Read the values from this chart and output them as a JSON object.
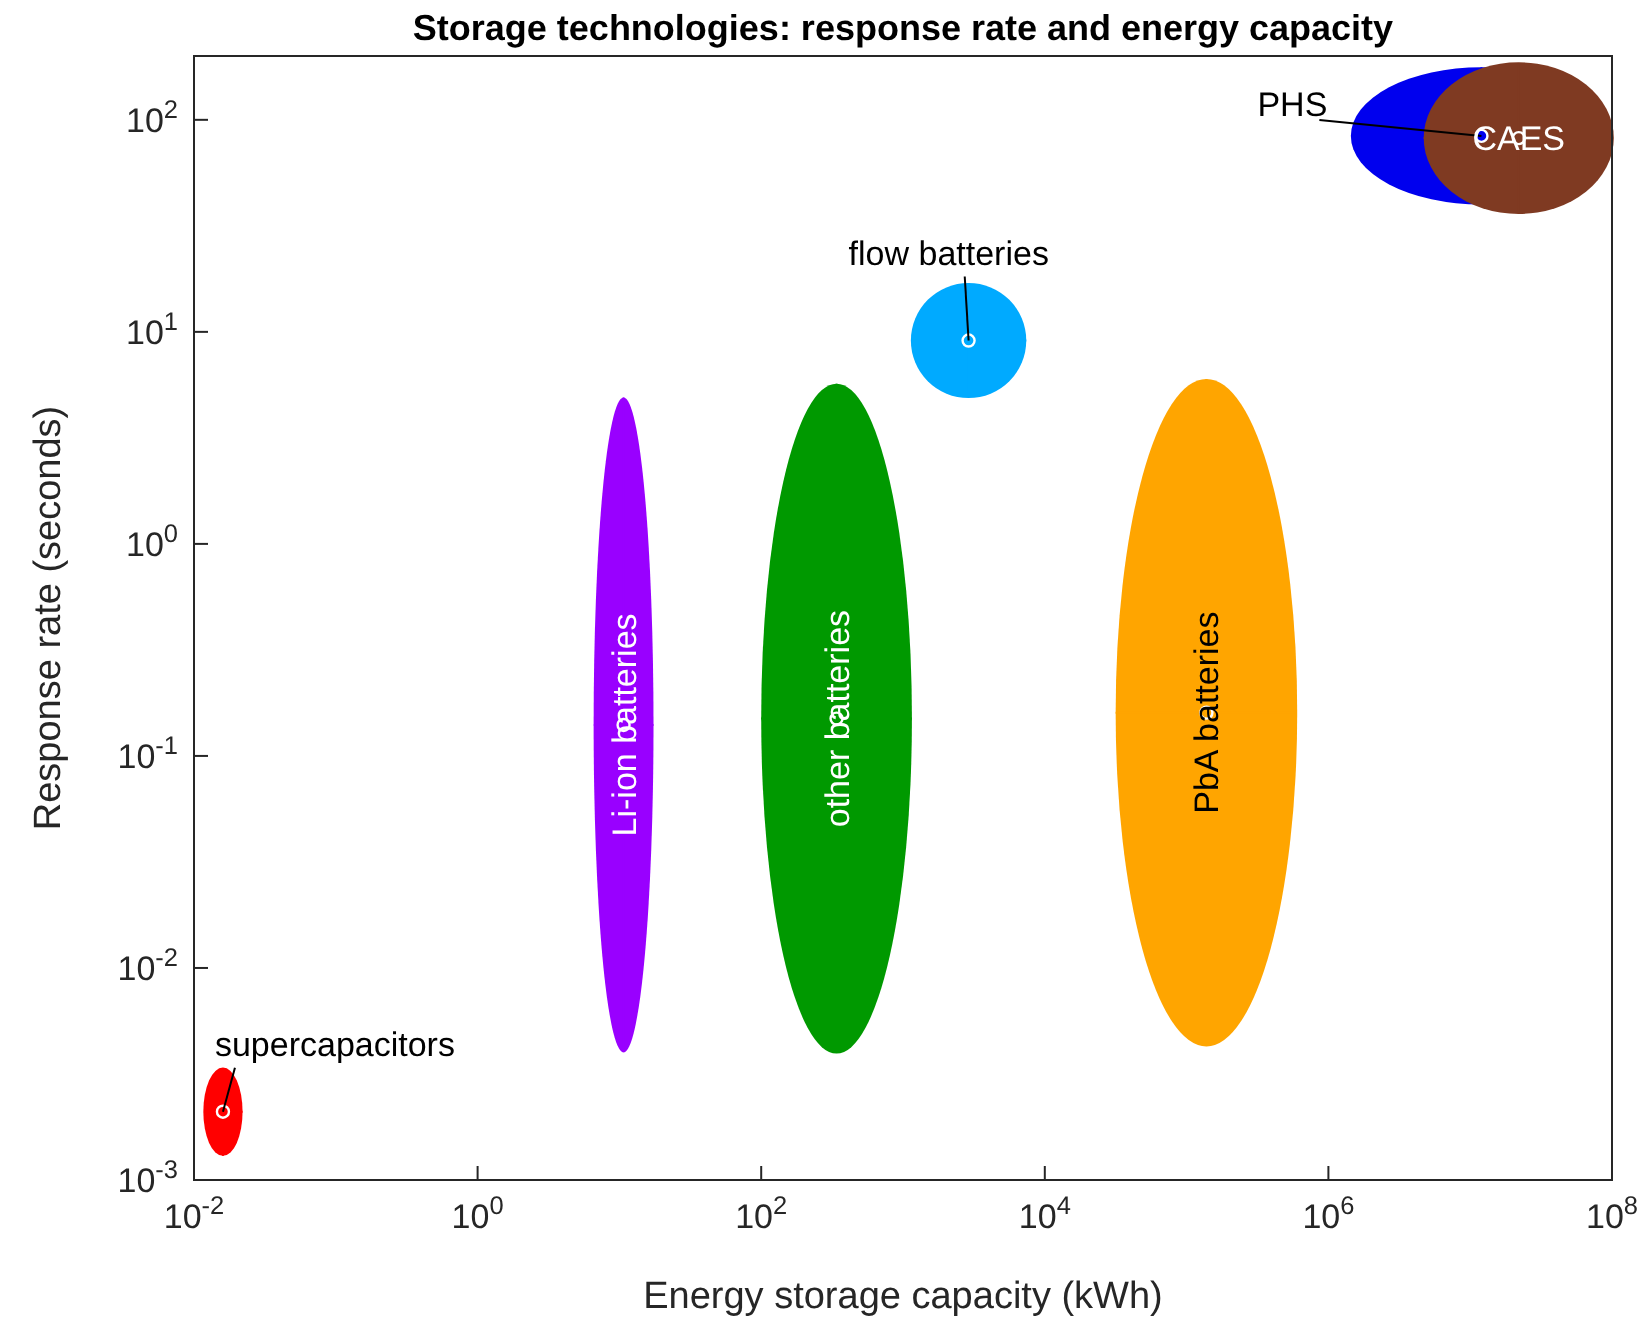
{
  "chart_data": {
    "type": "scatter",
    "title": "Storage technologies: response rate and energy capacity",
    "xlabel": "Energy storage capacity (kWh)",
    "ylabel": "Response rate (seconds)",
    "log": "xy",
    "marker": "circle",
    "grid": false,
    "xlim": [
      0.01,
      100000000
    ],
    "ylim": [
      0.001,
      200
    ],
    "xticks": [
      {
        "value": 0.01,
        "label": "10$^{-2}$"
      },
      {
        "value": 1,
        "label": "10$^{0}$"
      },
      {
        "value": 100,
        "label": "10$^{2}$"
      },
      {
        "value": 10000,
        "label": "10$^{4}$"
      },
      {
        "value": 1000000,
        "label": "10$^{6}$"
      },
      {
        "value": 100000000,
        "label": "10$^{8}$"
      }
    ],
    "yticks": [
      {
        "value": 0.001,
        "label": "10$^{-3}$"
      },
      {
        "value": 0.01,
        "label": "10$^{-2}$"
      },
      {
        "value": 0.1,
        "label": "10$^{-1}$"
      },
      {
        "value": 1,
        "label": "10$^{0}$"
      },
      {
        "value": 10,
        "label": "10$^{1}$"
      },
      {
        "value": 100,
        "label": "10$^{2}$"
      }
    ],
    "series": [
      {
        "name": "supercapacitors",
        "color": "#ff0000",
        "x": [
          0.016
        ],
        "values": [
          0.0021
        ],
        "xerrors": [
          [
            0.012,
            0.022
          ]
        ],
        "errors": [
          [
            0.0013,
            0.0032
          ]
        ]
      },
      {
        "name": "Li-ion batteries",
        "color": "#9900ff",
        "x": [
          10.7
        ],
        "values": [
          0.14
        ],
        "xerrors": [
          [
            6.6,
            17.4
          ]
        ],
        "errors": [
          [
            0.004,
            4.9
          ]
        ]
      },
      {
        "name": "other batteries",
        "color": "#009900",
        "x": [
          340
        ],
        "values": [
          0.15
        ],
        "xerrors": [
          [
            100,
            1150
          ]
        ],
        "errors": [
          [
            0.004,
            5.7
          ]
        ]
      },
      {
        "name": "flow batteries",
        "color": "#00aaff",
        "x": [
          2900
        ],
        "values": [
          9.1
        ],
        "xerrors": [
          [
            1150,
            7400
          ]
        ],
        "errors": [
          [
            5.1,
            17
          ]
        ]
      },
      {
        "name": "PbA batteries",
        "color": "#ffa500",
        "x": [
          138000
        ],
        "values": [
          0.16
        ],
        "xerrors": [
          [
            31600,
            590000
          ]
        ],
        "errors": [
          [
            0.0043,
            6
          ]
        ]
      },
      {
        "name": "PHS",
        "color": "#0000ee",
        "x": [
          12000000
        ],
        "values": [
          84
        ],
        "xerrors": [
          [
            1500000,
            100000000
          ]
        ],
        "errors": [
          [
            40,
            177
          ]
        ]
      },
      {
        "name": "CAES",
        "color": "#7f3a22",
        "x": [
          22000000
        ],
        "values": [
          82
        ],
        "xerrors": [
          [
            4700000,
            100000000
          ]
        ],
        "errors": [
          [
            36,
            185
          ]
        ]
      }
    ]
  }
}
